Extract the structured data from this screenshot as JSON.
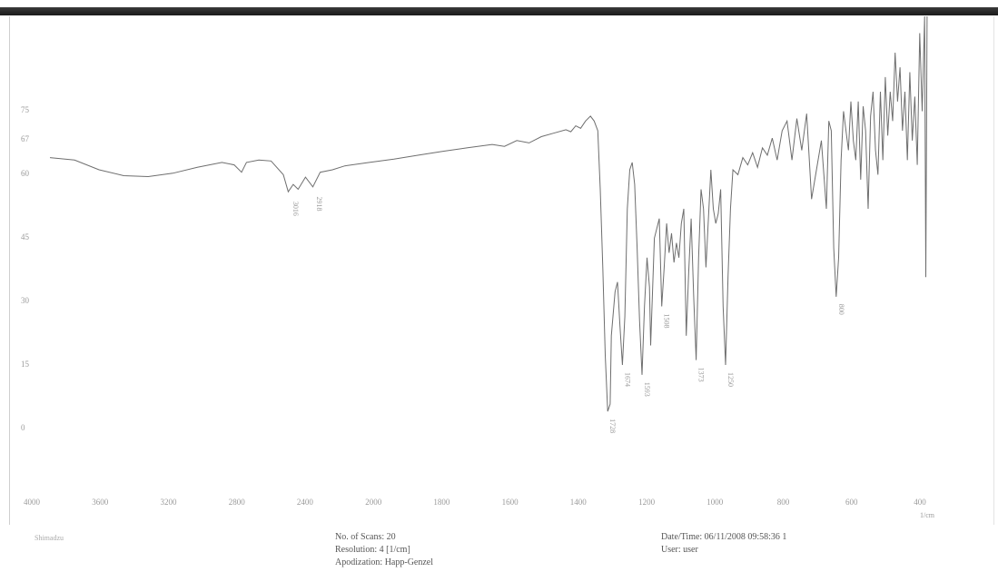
{
  "chart_data": {
    "type": "line",
    "title": "",
    "xlabel": "",
    "ylabel": "",
    "x_unit": "1/cm",
    "xlim": [
      4000,
      400
    ],
    "ylim": [
      0,
      80
    ],
    "grid": false,
    "x_ticks": [
      "4000",
      "3600",
      "3200",
      "2800",
      "2400",
      "2000",
      "1800",
      "1600",
      "1400",
      "1200",
      "1000",
      "800",
      "600",
      "400"
    ],
    "y_ticks": [
      "75",
      "67",
      "60",
      "45",
      "30",
      "15",
      "0"
    ],
    "series": [
      {
        "points": [
          [
            4000,
            58.5
          ],
          [
            3900,
            58.0
          ],
          [
            3800,
            56.0
          ],
          [
            3700,
            54.8
          ],
          [
            3600,
            54.6
          ],
          [
            3500,
            55.3
          ],
          [
            3400,
            56.5
          ],
          [
            3300,
            57.5
          ],
          [
            3250,
            57.0
          ],
          [
            3220,
            55.5
          ],
          [
            3200,
            57.5
          ],
          [
            3150,
            58.0
          ],
          [
            3100,
            57.8
          ],
          [
            3050,
            55.0
          ],
          [
            3030,
            51.5
          ],
          [
            3010,
            53.0
          ],
          [
            2990,
            52.0
          ],
          [
            2960,
            54.5
          ],
          [
            2930,
            52.5
          ],
          [
            2900,
            55.5
          ],
          [
            2850,
            56.0
          ],
          [
            2800,
            56.8
          ],
          [
            2700,
            57.5
          ],
          [
            2600,
            58.2
          ],
          [
            2500,
            59.0
          ],
          [
            2400,
            59.8
          ],
          [
            2300,
            60.5
          ],
          [
            2200,
            61.2
          ],
          [
            2150,
            60.8
          ],
          [
            2100,
            62.0
          ],
          [
            2050,
            61.5
          ],
          [
            2000,
            62.8
          ],
          [
            1950,
            63.5
          ],
          [
            1900,
            64.2
          ],
          [
            1880,
            63.8
          ],
          [
            1860,
            65.0
          ],
          [
            1840,
            64.5
          ],
          [
            1820,
            66.0
          ],
          [
            1800,
            67.0
          ],
          [
            1785,
            66.0
          ],
          [
            1770,
            64.0
          ],
          [
            1760,
            52.0
          ],
          [
            1750,
            36.0
          ],
          [
            1740,
            18.0
          ],
          [
            1730,
            6.5
          ],
          [
            1720,
            8.0
          ],
          [
            1715,
            22.0
          ],
          [
            1700,
            31.0
          ],
          [
            1690,
            33.0
          ],
          [
            1680,
            24.0
          ],
          [
            1670,
            16.0
          ],
          [
            1660,
            26.0
          ],
          [
            1650,
            48.0
          ],
          [
            1640,
            56.0
          ],
          [
            1630,
            57.5
          ],
          [
            1620,
            53.0
          ],
          [
            1610,
            40.0
          ],
          [
            1600,
            25.0
          ],
          [
            1590,
            14.0
          ],
          [
            1580,
            28.0
          ],
          [
            1570,
            38.0
          ],
          [
            1560,
            32.0
          ],
          [
            1555,
            20.0
          ],
          [
            1540,
            42.0
          ],
          [
            1520,
            46.0
          ],
          [
            1510,
            28.0
          ],
          [
            1500,
            36.0
          ],
          [
            1490,
            45.0
          ],
          [
            1480,
            39.0
          ],
          [
            1470,
            43.0
          ],
          [
            1460,
            37.0
          ],
          [
            1450,
            41.0
          ],
          [
            1440,
            38.0
          ],
          [
            1430,
            45.0
          ],
          [
            1420,
            48.0
          ],
          [
            1410,
            22.0
          ],
          [
            1400,
            35.0
          ],
          [
            1390,
            46.0
          ],
          [
            1380,
            30.0
          ],
          [
            1370,
            17.0
          ],
          [
            1360,
            38.0
          ],
          [
            1350,
            52.0
          ],
          [
            1340,
            48.0
          ],
          [
            1330,
            36.0
          ],
          [
            1320,
            46.0
          ],
          [
            1310,
            56.0
          ],
          [
            1300,
            48.0
          ],
          [
            1290,
            45.0
          ],
          [
            1280,
            47.0
          ],
          [
            1270,
            52.0
          ],
          [
            1260,
            28.0
          ],
          [
            1250,
            16.0
          ],
          [
            1240,
            34.0
          ],
          [
            1230,
            48.0
          ],
          [
            1220,
            56.0
          ],
          [
            1200,
            55.0
          ],
          [
            1180,
            58.5
          ],
          [
            1160,
            57.0
          ],
          [
            1140,
            59.5
          ],
          [
            1120,
            56.5
          ],
          [
            1100,
            60.5
          ],
          [
            1080,
            59.0
          ],
          [
            1060,
            62.5
          ],
          [
            1040,
            58.0
          ],
          [
            1020,
            64.0
          ],
          [
            1000,
            66.0
          ],
          [
            980,
            58.0
          ],
          [
            960,
            66.5
          ],
          [
            940,
            60.0
          ],
          [
            920,
            67.5
          ],
          [
            900,
            50.0
          ],
          [
            880,
            56.0
          ],
          [
            860,
            62.0
          ],
          [
            840,
            48.0
          ],
          [
            830,
            66.0
          ],
          [
            820,
            64.0
          ],
          [
            810,
            40.0
          ],
          [
            800,
            30.0
          ],
          [
            790,
            38.0
          ],
          [
            780,
            58.0
          ],
          [
            770,
            68.0
          ],
          [
            750,
            60.0
          ],
          [
            740,
            70.0
          ],
          [
            730,
            62.0
          ],
          [
            720,
            58.0
          ],
          [
            710,
            70.0
          ],
          [
            700,
            54.0
          ],
          [
            690,
            69.0
          ],
          [
            680,
            64.0
          ],
          [
            670,
            48.0
          ],
          [
            660,
            67.0
          ],
          [
            650,
            72.0
          ],
          [
            640,
            60.0
          ],
          [
            630,
            55.0
          ],
          [
            620,
            72.0
          ],
          [
            610,
            58.0
          ],
          [
            600,
            75.0
          ],
          [
            590,
            63.0
          ],
          [
            580,
            72.0
          ],
          [
            570,
            66.0
          ],
          [
            560,
            80.0
          ],
          [
            550,
            70.0
          ],
          [
            540,
            77.0
          ],
          [
            530,
            64.0
          ],
          [
            520,
            72.0
          ],
          [
            510,
            58.0
          ],
          [
            500,
            76.0
          ],
          [
            490,
            62.0
          ],
          [
            480,
            71.0
          ],
          [
            470,
            57.0
          ],
          [
            460,
            84.0
          ],
          [
            450,
            68.0
          ],
          [
            440,
            88.0
          ],
          [
            435,
            34.0
          ],
          [
            430,
            88.0
          ]
        ]
      }
    ],
    "peak_labels": [
      {
        "x": 3020,
        "y": 51.0,
        "text": "3016"
      },
      {
        "x": 2925,
        "y": 52.0,
        "text": "2918"
      },
      {
        "x": 1730,
        "y": 6.5,
        "text": "1728"
      },
      {
        "x": 1670,
        "y": 16.0,
        "text": "1674"
      },
      {
        "x": 1590,
        "y": 14.0,
        "text": "1593"
      },
      {
        "x": 1510,
        "y": 28.0,
        "text": "1508"
      },
      {
        "x": 1370,
        "y": 17.0,
        "text": "1373"
      },
      {
        "x": 1250,
        "y": 16.0,
        "text": "1250"
      },
      {
        "x": 800,
        "y": 30.0,
        "text": "800"
      }
    ]
  },
  "footer": {
    "left_label": "Shimadzu",
    "scans": "No. of Scans: 20",
    "resolution": "Resolution:   4 [1/cm]",
    "apodization": "Apodization:   Happ-Genzel",
    "datetime": "Date/Time: 06/11/2008 09:58:36 1",
    "user": "User:         user"
  }
}
